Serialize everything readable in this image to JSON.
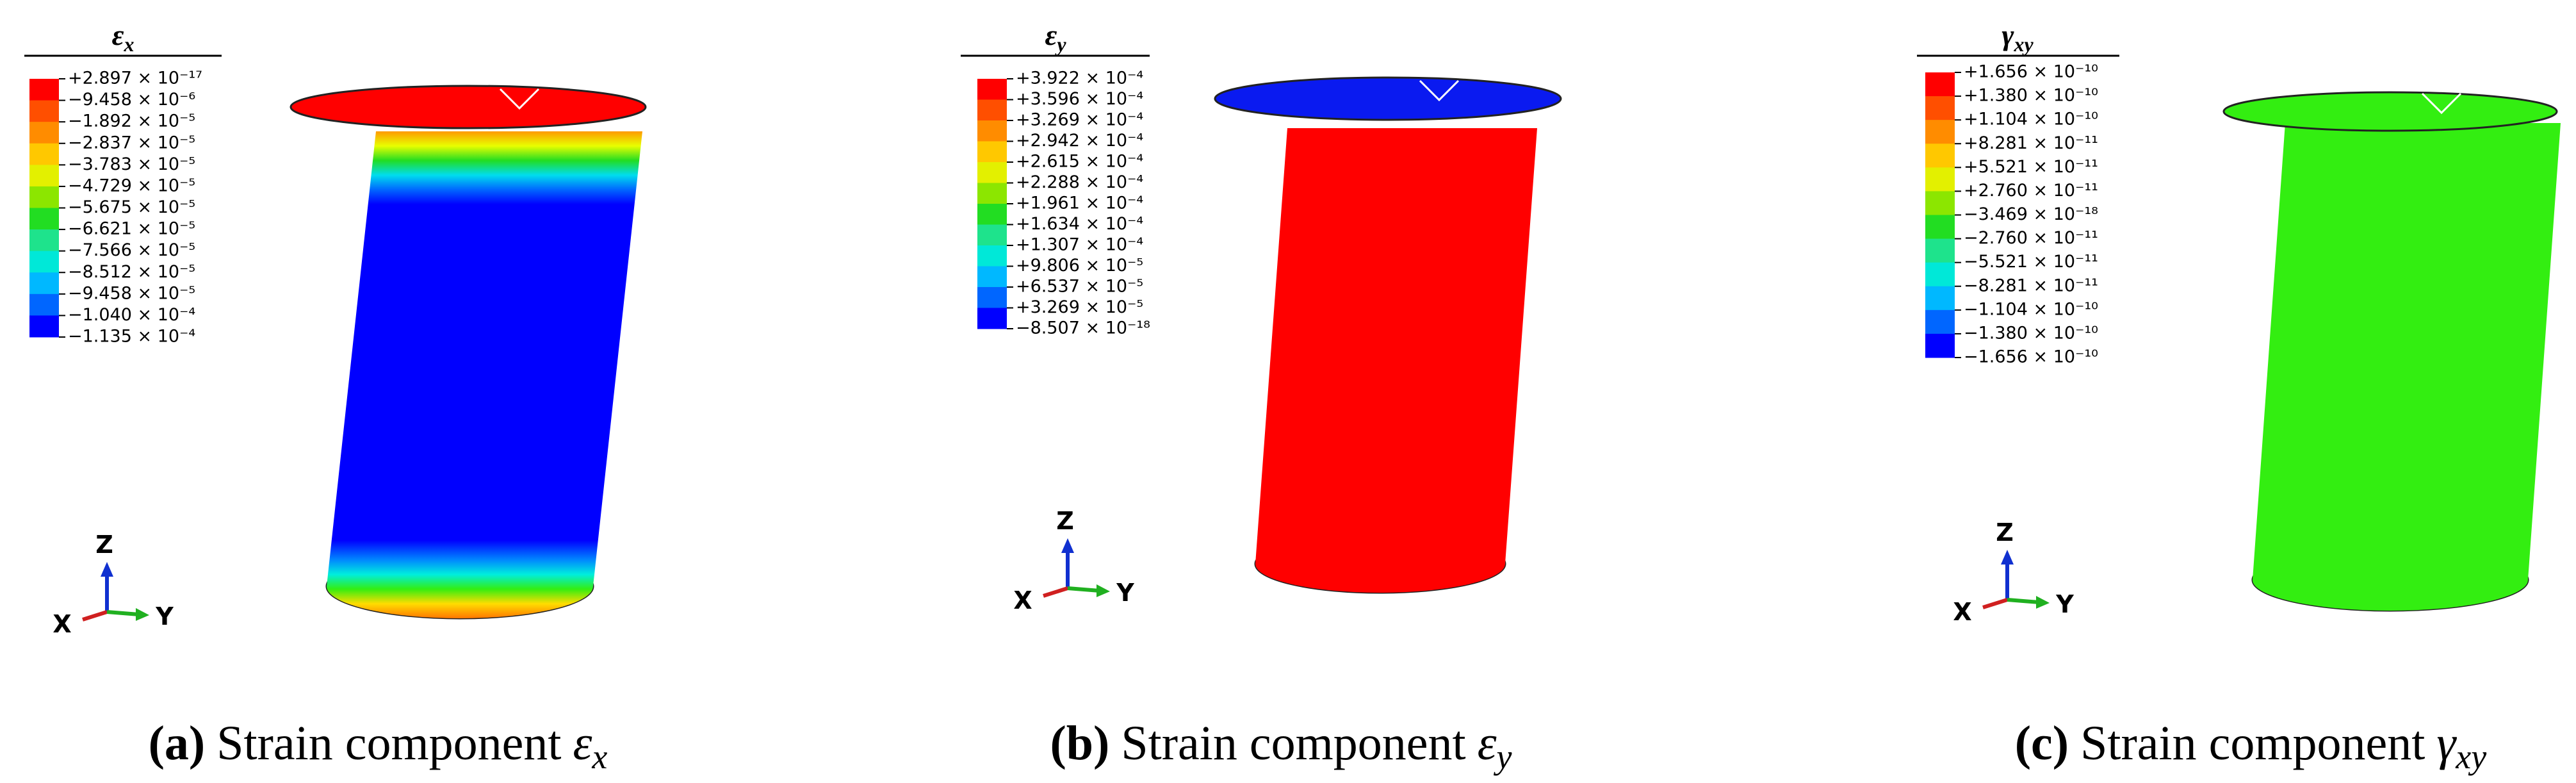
{
  "panels": [
    {
      "legend": {
        "symbol": "ε",
        "subscript": "x",
        "labels": [
          "+2.897 × 10⁻¹⁷",
          "−9.458 × 10⁻⁶",
          "−1.892 × 10⁻⁵",
          "−2.837 × 10⁻⁵",
          "−3.783 × 10⁻⁵",
          "−4.729 × 10⁻⁵",
          "−5.675 × 10⁻⁵",
          "−6.621 × 10⁻⁵",
          "−7.566 × 10⁻⁵",
          "−8.512 × 10⁻⁵",
          "−9.458 × 10⁻⁵",
          "−1.040 × 10⁻⁴",
          "−1.135 × 10⁻⁴"
        ]
      },
      "triad": {
        "z": "Z",
        "x": "X",
        "y": "Y"
      },
      "caption": {
        "label": "(a)",
        "text": "Strain component",
        "symbol": "ε",
        "subscript": "x"
      }
    },
    {
      "legend": {
        "symbol": "ε",
        "subscript": "y",
        "labels": [
          "+3.922 × 10⁻⁴",
          "+3.596 × 10⁻⁴",
          "+3.269 × 10⁻⁴",
          "+2.942 × 10⁻⁴",
          "+2.615 × 10⁻⁴",
          "+2.288 × 10⁻⁴",
          "+1.961 × 10⁻⁴",
          "+1.634 × 10⁻⁴",
          "+1.307 × 10⁻⁴",
          "+9.806 × 10⁻⁵",
          "+6.537 × 10⁻⁵",
          "+3.269 × 10⁻⁵",
          "−8.507 × 10⁻¹⁸"
        ]
      },
      "triad": {
        "z": "Z",
        "x": "X",
        "y": "Y"
      },
      "caption": {
        "label": "(b)",
        "text": "Strain component",
        "symbol": "ε",
        "subscript": "y"
      }
    },
    {
      "legend": {
        "symbol": "γ",
        "subscript": "xy",
        "labels": [
          "+1.656 × 10⁻¹⁰",
          "+1.380 × 10⁻¹⁰",
          "+1.104 × 10⁻¹⁰",
          "+8.281 × 10⁻¹¹",
          "+5.521 × 10⁻¹¹",
          "+2.760 × 10⁻¹¹",
          "−3.469 × 10⁻¹⁸",
          "−2.760 × 10⁻¹¹",
          "−5.521 × 10⁻¹¹",
          "−8.281 × 10⁻¹¹",
          "−1.104 × 10⁻¹⁰",
          "−1.380 × 10⁻¹⁰",
          "−1.656 × 10⁻¹⁰"
        ]
      },
      "triad": {
        "z": "Z",
        "x": "X",
        "y": "Y"
      },
      "caption": {
        "label": "(c)",
        "text": "Strain component",
        "symbol": "γ",
        "subscript": "xy"
      }
    }
  ]
}
